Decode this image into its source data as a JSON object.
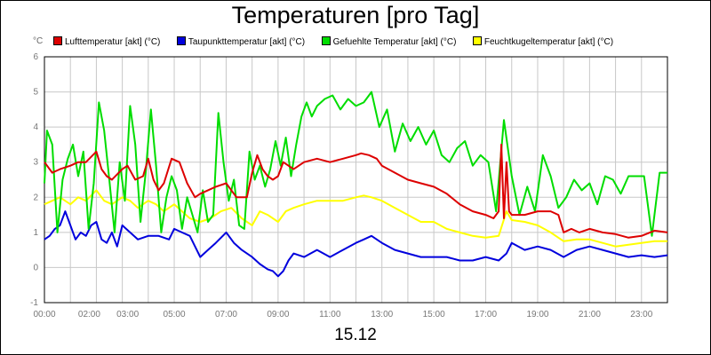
{
  "chart_data": {
    "type": "line",
    "title": "Temperaturen [pro Tag]",
    "ylabel": "°C",
    "xlabel": "15.12",
    "ylim": [
      -1,
      6
    ],
    "xlim": [
      0,
      24
    ],
    "y_ticks": [
      "-1",
      "0",
      "1",
      "2",
      "3",
      "4",
      "5",
      "6"
    ],
    "x_ticks": [
      "00:00",
      "02:00",
      "03:00",
      "05:00",
      "07:00",
      "09:00",
      "11:00",
      "13:00",
      "15:00",
      "17:00",
      "19:00",
      "21:00",
      "23:00"
    ],
    "grid": true,
    "legend_position": "top",
    "series": [
      {
        "name": "Lufttemperatur [akt] (°C)",
        "color": "#dd0000",
        "x": [
          0,
          0.3,
          0.6,
          1,
          1.3,
          1.6,
          2,
          2.2,
          2.4,
          2.6,
          3,
          3.2,
          3.5,
          3.8,
          4,
          4.2,
          4.4,
          4.6,
          4.9,
          5.2,
          5.5,
          5.8,
          6,
          6.3,
          6.6,
          7,
          7.4,
          7.8,
          8,
          8.2,
          8.4,
          8.6,
          8.8,
          9,
          9.2,
          9.4,
          9.6,
          10,
          10.5,
          11,
          11.5,
          12,
          12.2,
          12.5,
          12.8,
          13,
          13.5,
          14,
          14.5,
          15,
          15.5,
          16,
          16.5,
          17,
          17.3,
          17.5,
          17.6,
          17.7,
          17.8,
          17.9,
          18,
          18.2,
          18.5,
          19,
          19.5,
          19.8,
          20,
          20.3,
          20.6,
          21,
          21.5,
          22,
          22.5,
          23,
          23.5,
          24
        ],
        "y": [
          3.0,
          2.7,
          2.8,
          2.9,
          3.0,
          3.0,
          3.3,
          2.8,
          2.6,
          2.5,
          2.8,
          2.9,
          2.5,
          2.6,
          3.1,
          2.5,
          2.2,
          2.4,
          3.1,
          3.0,
          2.4,
          2.0,
          2.1,
          2.2,
          2.3,
          2.4,
          2.0,
          2.0,
          2.7,
          3.2,
          2.8,
          2.6,
          2.5,
          2.6,
          3.0,
          2.9,
          2.8,
          3.0,
          3.1,
          3.0,
          3.1,
          3.2,
          3.25,
          3.2,
          3.1,
          2.9,
          2.7,
          2.5,
          2.4,
          2.3,
          2.1,
          1.8,
          1.6,
          1.5,
          1.4,
          1.6,
          3.5,
          1.4,
          3.0,
          1.6,
          1.5,
          1.5,
          1.5,
          1.6,
          1.6,
          1.5,
          1.0,
          1.1,
          1.0,
          1.1,
          1.0,
          0.95,
          0.85,
          0.9,
          1.05,
          1.0
        ]
      },
      {
        "name": "Taupunkttemperatur [akt] (°C)",
        "color": "#0000dd",
        "x": [
          0,
          0.2,
          0.4,
          0.6,
          0.8,
          1,
          1.2,
          1.4,
          1.6,
          1.8,
          2,
          2.2,
          2.4,
          2.6,
          2.8,
          3,
          3.3,
          3.6,
          4,
          4.4,
          4.8,
          5,
          5.3,
          5.6,
          6,
          6.3,
          6.6,
          7,
          7.3,
          7.6,
          8,
          8.3,
          8.6,
          8.8,
          9,
          9.2,
          9.4,
          9.6,
          10,
          10.5,
          11,
          11.5,
          12,
          12.3,
          12.6,
          13,
          13.5,
          14,
          14.5,
          15,
          15.5,
          16,
          16.5,
          17,
          17.5,
          17.8,
          18,
          18.5,
          19,
          19.5,
          20,
          20.5,
          21,
          21.5,
          22,
          22.5,
          23,
          23.5,
          24
        ],
        "y": [
          0.8,
          0.9,
          1.1,
          1.2,
          1.6,
          1.2,
          0.8,
          1.0,
          0.9,
          1.2,
          1.3,
          0.8,
          0.7,
          1.0,
          0.6,
          1.2,
          1.0,
          0.8,
          0.9,
          0.9,
          0.8,
          1.1,
          1.0,
          0.9,
          0.3,
          0.5,
          0.7,
          1.0,
          0.7,
          0.5,
          0.3,
          0.1,
          -0.05,
          -0.1,
          -0.25,
          -0.1,
          0.2,
          0.4,
          0.3,
          0.5,
          0.3,
          0.5,
          0.7,
          0.8,
          0.9,
          0.7,
          0.5,
          0.4,
          0.3,
          0.3,
          0.3,
          0.2,
          0.2,
          0.3,
          0.2,
          0.4,
          0.7,
          0.5,
          0.6,
          0.5,
          0.3,
          0.5,
          0.6,
          0.5,
          0.4,
          0.3,
          0.35,
          0.3,
          0.35
        ]
      },
      {
        "name": "Gefuehlte Temperatur [akt] (°C)",
        "color": "#00dd00",
        "x": [
          0,
          0.1,
          0.3,
          0.5,
          0.7,
          0.9,
          1.1,
          1.3,
          1.5,
          1.7,
          1.9,
          2.1,
          2.3,
          2.5,
          2.7,
          2.9,
          3.1,
          3.3,
          3.5,
          3.7,
          3.9,
          4.1,
          4.3,
          4.5,
          4.7,
          4.9,
          5.1,
          5.3,
          5.5,
          5.7,
          5.9,
          6.1,
          6.3,
          6.5,
          6.7,
          6.9,
          7.1,
          7.3,
          7.5,
          7.7,
          7.9,
          8.1,
          8.3,
          8.5,
          8.7,
          8.9,
          9.1,
          9.3,
          9.5,
          9.7,
          9.9,
          10.1,
          10.3,
          10.5,
          10.8,
          11.1,
          11.4,
          11.7,
          12,
          12.3,
          12.6,
          12.9,
          13.2,
          13.5,
          13.8,
          14.1,
          14.4,
          14.7,
          15,
          15.3,
          15.6,
          15.9,
          16.2,
          16.5,
          16.8,
          17.1,
          17.4,
          17.7,
          18,
          18.3,
          18.6,
          18.9,
          19.2,
          19.5,
          19.8,
          20.1,
          20.4,
          20.7,
          21,
          21.3,
          21.6,
          21.9,
          22.2,
          22.5,
          22.8,
          23.1,
          23.4,
          23.7,
          24
        ],
        "y": [
          2.4,
          3.9,
          3.5,
          1.0,
          2.5,
          3.1,
          3.5,
          2.6,
          3.3,
          1.1,
          2.4,
          4.7,
          3.9,
          2.5,
          1.0,
          3.0,
          1.9,
          4.6,
          3.5,
          1.3,
          2.7,
          4.5,
          2.9,
          1.0,
          2.0,
          2.6,
          2.2,
          1.1,
          2.0,
          1.5,
          1.0,
          2.2,
          1.3,
          1.5,
          4.4,
          3.0,
          1.9,
          2.5,
          1.2,
          1.1,
          3.3,
          2.5,
          2.9,
          2.3,
          2.8,
          3.6,
          2.9,
          3.7,
          2.6,
          3.5,
          4.3,
          4.7,
          4.3,
          4.6,
          4.8,
          4.9,
          4.5,
          4.8,
          4.6,
          4.7,
          5.0,
          4.0,
          4.5,
          3.3,
          4.1,
          3.6,
          4.0,
          3.5,
          3.9,
          3.2,
          3.0,
          3.4,
          3.6,
          2.9,
          3.2,
          3.0,
          1.6,
          4.2,
          2.6,
          1.5,
          2.3,
          1.6,
          3.2,
          2.6,
          1.7,
          2.0,
          2.5,
          2.2,
          2.4,
          1.8,
          2.6,
          2.5,
          2.1,
          2.6,
          2.6,
          2.6,
          0.9,
          2.7,
          2.7
        ]
      },
      {
        "name": "Feuchtkugeltemperatur [akt] (°C)",
        "color": "#ffff00",
        "x": [
          0,
          0.3,
          0.6,
          1,
          1.3,
          1.6,
          2,
          2.3,
          2.6,
          3,
          3.3,
          3.6,
          4,
          4.3,
          4.6,
          5,
          5.3,
          5.6,
          6,
          6.4,
          6.8,
          7.2,
          7.6,
          8,
          8.3,
          8.6,
          9,
          9.3,
          9.6,
          10,
          10.5,
          11,
          11.5,
          12,
          12.3,
          12.6,
          13,
          13.5,
          14,
          14.5,
          15,
          15.5,
          16,
          16.5,
          17,
          17.5,
          17.8,
          18,
          18.5,
          19,
          19.5,
          20,
          20.5,
          21,
          21.5,
          22,
          22.5,
          23,
          23.5,
          24
        ],
        "y": [
          1.8,
          1.9,
          2.0,
          1.8,
          2.0,
          1.9,
          2.2,
          1.9,
          1.8,
          2.0,
          1.9,
          1.7,
          1.9,
          1.8,
          1.6,
          1.8,
          1.6,
          1.4,
          1.3,
          1.4,
          1.6,
          1.7,
          1.4,
          1.2,
          1.6,
          1.5,
          1.3,
          1.6,
          1.7,
          1.8,
          1.9,
          1.9,
          1.9,
          2.0,
          2.05,
          2.0,
          1.9,
          1.7,
          1.5,
          1.3,
          1.3,
          1.1,
          1.0,
          0.9,
          0.85,
          0.9,
          1.6,
          1.35,
          1.3,
          1.2,
          1.0,
          0.75,
          0.8,
          0.8,
          0.7,
          0.6,
          0.65,
          0.7,
          0.75,
          0.75
        ]
      }
    ]
  }
}
